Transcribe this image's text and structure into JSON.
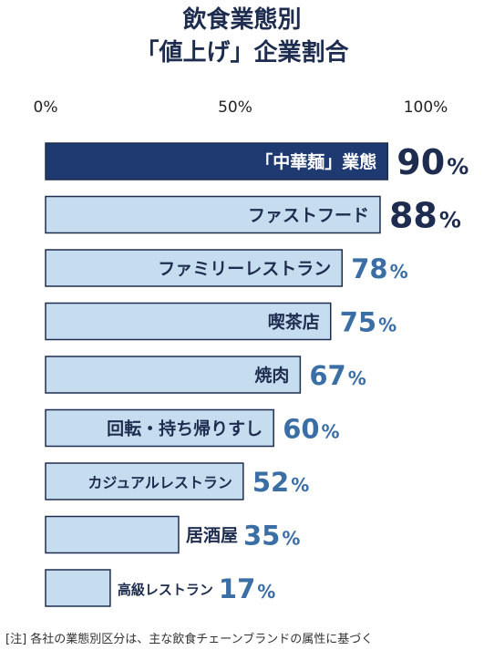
{
  "title_line1": "飲食業態別",
  "title_line2": "「値上げ」企業割合",
  "note": "[注]  各社の業態別区分は、主な飲食チェーンブランドの属性に基づく",
  "colors": {
    "title": "#1e2d4f",
    "highlight_bar": "#1f3a70",
    "bar": "#c6dcef",
    "bar_border": "#1e2d4f",
    "value_dark": "#1e2d4f",
    "value": "#3a6ea5"
  },
  "chart_data": {
    "type": "bar",
    "orientation": "horizontal",
    "xlim": [
      0,
      100
    ],
    "ticks": [
      "0%",
      "50%",
      "100%"
    ],
    "unit": "%",
    "categories": [
      "「中華麺」業態",
      "ファストフード",
      "ファミリーレストラン",
      "喫茶店",
      "焼肉",
      "回転・持ち帰りすし",
      "カジュアルレストラン",
      "居酒屋",
      "高級レストラン"
    ],
    "values": [
      90,
      88,
      78,
      75,
      67,
      60,
      52,
      35,
      17
    ],
    "highlighted": [
      0
    ]
  }
}
